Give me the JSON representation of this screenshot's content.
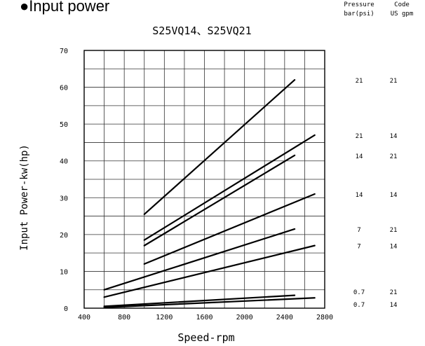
{
  "heading": "Input power",
  "chart_data": {
    "type": "line",
    "title": "S25VQ14、S25VQ21",
    "xlabel": "Speed-rpm",
    "ylabel": "Input Power-kw(hp)",
    "xlim": [
      400,
      2800
    ],
    "ylim": [
      0,
      70
    ],
    "x_ticks": [
      "400",
      "800",
      "1200",
      "1600",
      "2000",
      "2400",
      "2800"
    ],
    "y_ticks": [
      "0",
      "10",
      "20",
      "30",
      "40",
      "50",
      "60",
      "70"
    ],
    "grid": true,
    "table_headers": {
      "pressure": [
        "Pressure",
        "bar(psi)"
      ],
      "code": [
        "Code",
        "US gpm"
      ]
    },
    "series": [
      {
        "pressure": "21",
        "code": "21",
        "x": [
          1000,
          2500
        ],
        "y": [
          25.5,
          62
        ]
      },
      {
        "pressure": "21",
        "code": "14",
        "x": [
          1000,
          2700
        ],
        "y": [
          18.5,
          47
        ]
      },
      {
        "pressure": "14",
        "code": "21",
        "x": [
          1000,
          2500
        ],
        "y": [
          17,
          41.5
        ]
      },
      {
        "pressure": "14",
        "code": "14",
        "x": [
          1000,
          2700
        ],
        "y": [
          12,
          31
        ]
      },
      {
        "pressure": "7",
        "code": "21",
        "x": [
          600,
          2500
        ],
        "y": [
          5,
          21.5
        ]
      },
      {
        "pressure": "7",
        "code": "14",
        "x": [
          600,
          2700
        ],
        "y": [
          3,
          17
        ]
      },
      {
        "pressure": "0.7",
        "code": "21",
        "x": [
          600,
          2500
        ],
        "y": [
          0.5,
          3.5
        ]
      },
      {
        "pressure": "0.7",
        "code": "14",
        "x": [
          600,
          2700
        ],
        "y": [
          0.2,
          2.8
        ]
      }
    ]
  }
}
